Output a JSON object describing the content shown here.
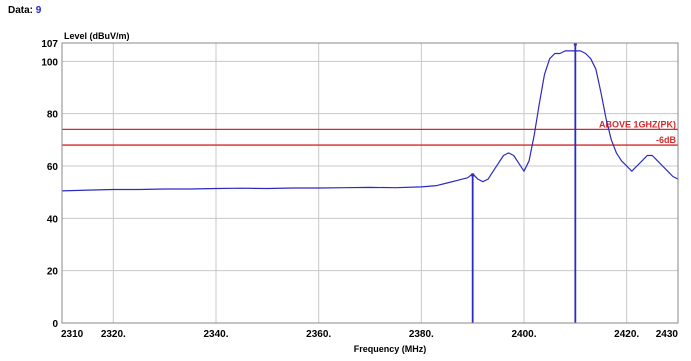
{
  "header": {
    "label": "Data:",
    "value": "9"
  },
  "chart_data": {
    "type": "line",
    "xlabel": "Frequency (MHz)",
    "ylabel": "Level (dBuV/m)",
    "xlim": [
      2310,
      2430
    ],
    "ylim": [
      0,
      107
    ],
    "x_ticks": [
      {
        "v": 2310,
        "label": "2310"
      },
      {
        "v": 2320,
        "label": "2320."
      },
      {
        "v": 2340,
        "label": "2340."
      },
      {
        "v": 2360,
        "label": "2360."
      },
      {
        "v": 2380,
        "label": "2380."
      },
      {
        "v": 2400,
        "label": "2400."
      },
      {
        "v": 2420,
        "label": "2420."
      },
      {
        "v": 2430,
        "label": "2430"
      }
    ],
    "y_ticks": [
      {
        "v": 0,
        "label": "0"
      },
      {
        "v": 20,
        "label": "20"
      },
      {
        "v": 40,
        "label": "40"
      },
      {
        "v": 60,
        "label": "60"
      },
      {
        "v": 80,
        "label": "80"
      },
      {
        "v": 100,
        "label": "100"
      },
      {
        "v": 107,
        "label": "107"
      }
    ],
    "grid": true,
    "limit_lines": [
      {
        "label": "ABOVE 1GHZ(PK)",
        "y": 74
      },
      {
        "label": "-6dB",
        "y": 68
      }
    ],
    "markers": [
      {
        "x": 2390,
        "y": 56
      },
      {
        "x": 2410,
        "y": 106
      }
    ],
    "colors": {
      "trace": "#2b2bbf",
      "limit": "#d42a2a",
      "grid": "#c8c8c8",
      "data_value": "#2222cc"
    },
    "series": [
      {
        "x": [
          2310,
          2315,
          2320,
          2325,
          2330,
          2335,
          2340,
          2345,
          2350,
          2355,
          2360,
          2365,
          2370,
          2375,
          2380,
          2383,
          2385,
          2387,
          2388,
          2389,
          2390,
          2391,
          2392,
          2393,
          2394,
          2395,
          2396,
          2397,
          2398,
          2399,
          2400,
          2401,
          2402,
          2403,
          2404,
          2405,
          2406,
          2407,
          2408,
          2409,
          2410,
          2411,
          2412,
          2413,
          2414,
          2415,
          2416,
          2417,
          2418,
          2419,
          2420,
          2421,
          2422,
          2423,
          2424,
          2425,
          2426,
          2427,
          2428,
          2429,
          2430
        ],
        "y": [
          50.5,
          50.8,
          51,
          51,
          51.2,
          51.2,
          51.4,
          51.5,
          51.4,
          51.6,
          51.6,
          51.7,
          51.8,
          51.7,
          52,
          52.5,
          53.5,
          54.5,
          55,
          55.5,
          57,
          55,
          54,
          55,
          58,
          61,
          64,
          65,
          64,
          61,
          58,
          62,
          72,
          84,
          95,
          101,
          103,
          103,
          104,
          104,
          104,
          104,
          103,
          101,
          97,
          88,
          78,
          70,
          65,
          62,
          60,
          58,
          60,
          62,
          64,
          64,
          62,
          60,
          58,
          56,
          55
        ]
      }
    ]
  }
}
